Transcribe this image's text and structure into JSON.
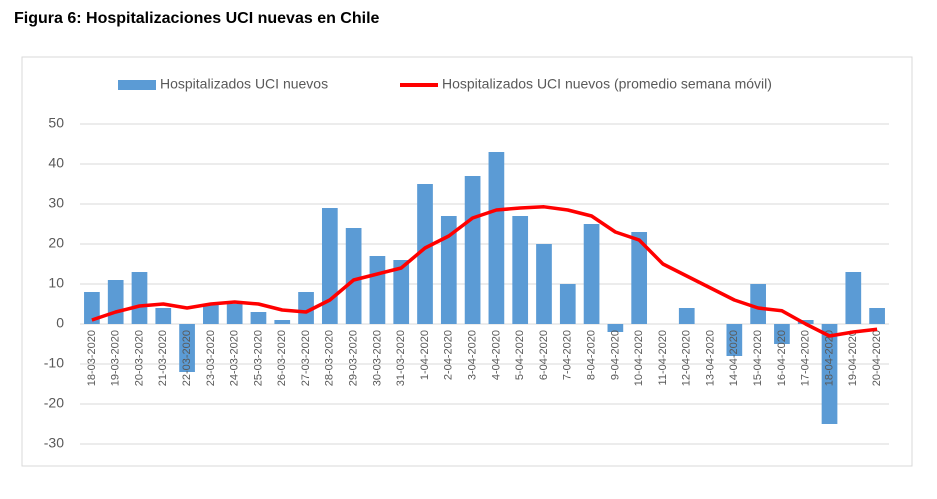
{
  "chart_data": {
    "type": "bar_line",
    "title": "Figura 6: Hospitalizaciones UCI nuevas en Chile",
    "categories": [
      "18-03-2020",
      "19-03-2020",
      "20-03-2020",
      "21-03-2020",
      "22-03-2020",
      "23-03-2020",
      "24-03-2020",
      "25-03-2020",
      "26-03-2020",
      "27-03-2020",
      "28-03-2020",
      "29-03-2020",
      "30-03-2020",
      "31-03-2020",
      "1-04-2020",
      "2-04-2020",
      "3-04-2020",
      "4-04-2020",
      "5-04-2020",
      "6-04-2020",
      "7-04-2020",
      "8-04-2020",
      "9-04-2020",
      "10-04-2020",
      "11-04-2020",
      "12-04-2020",
      "13-04-2020",
      "14-04-2020",
      "15-04-2020",
      "16-04-2020",
      "17-04-2020",
      "18-04-2020",
      "19-04-2020",
      "20-04-2020"
    ],
    "series": [
      {
        "name": "Hospitalizados UCI nuevos",
        "kind": "bar",
        "color": "#5b9bd5",
        "values": [
          8,
          11,
          13,
          4,
          -12,
          5,
          5,
          3,
          1,
          8,
          29,
          24,
          17,
          16,
          35,
          27,
          37,
          43,
          27,
          20,
          10,
          25,
          -2,
          23,
          0,
          4,
          0,
          -8,
          10,
          -5,
          1,
          -25,
          13,
          4
        ]
      },
      {
        "name": "Hospitalizados UCI nuevos (promedio semana móvil)",
        "kind": "line",
        "color": "#ff0000",
        "values": [
          1,
          3,
          4.5,
          5,
          4,
          5,
          5.5,
          5,
          3.5,
          3,
          6,
          11,
          12.5,
          14,
          19,
          22,
          26.5,
          28.5,
          29,
          29.3,
          28.5,
          27,
          23,
          21,
          15,
          12,
          9,
          6,
          4,
          3.3,
          0,
          -3,
          -2,
          -1.3
        ]
      }
    ],
    "ylim": [
      -30,
      50
    ],
    "yticks": [
      -30,
      -20,
      -10,
      0,
      10,
      20,
      30,
      40,
      50
    ],
    "grid": true
  }
}
